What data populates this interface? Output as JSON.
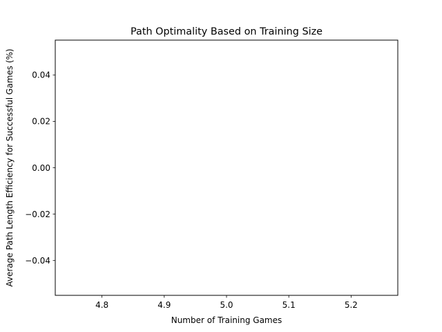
{
  "chart_data": {
    "type": "line",
    "title": "Path Optimality Based on Training Size",
    "xlabel": "Number of Training Games",
    "ylabel": "Average Path Length Efficiency for Successful Games (%)",
    "xlim": [
      4.725,
      5.275
    ],
    "ylim": [
      -0.055,
      0.055
    ],
    "xticks": [
      4.8,
      4.9,
      5.0,
      5.1,
      5.2
    ],
    "xtick_labels": [
      "4.8",
      "4.9",
      "5.0",
      "5.1",
      "5.2"
    ],
    "yticks": [
      -0.04,
      -0.02,
      0.0,
      0.02,
      0.04
    ],
    "ytick_labels": [
      "−0.04",
      "−0.02",
      "0.00",
      "0.02",
      "0.04"
    ],
    "grid": false,
    "legend": "none",
    "series": [
      {
        "x": [],
        "y": []
      }
    ]
  },
  "colors": {
    "axes": "#000000",
    "background": "#ffffff"
  }
}
